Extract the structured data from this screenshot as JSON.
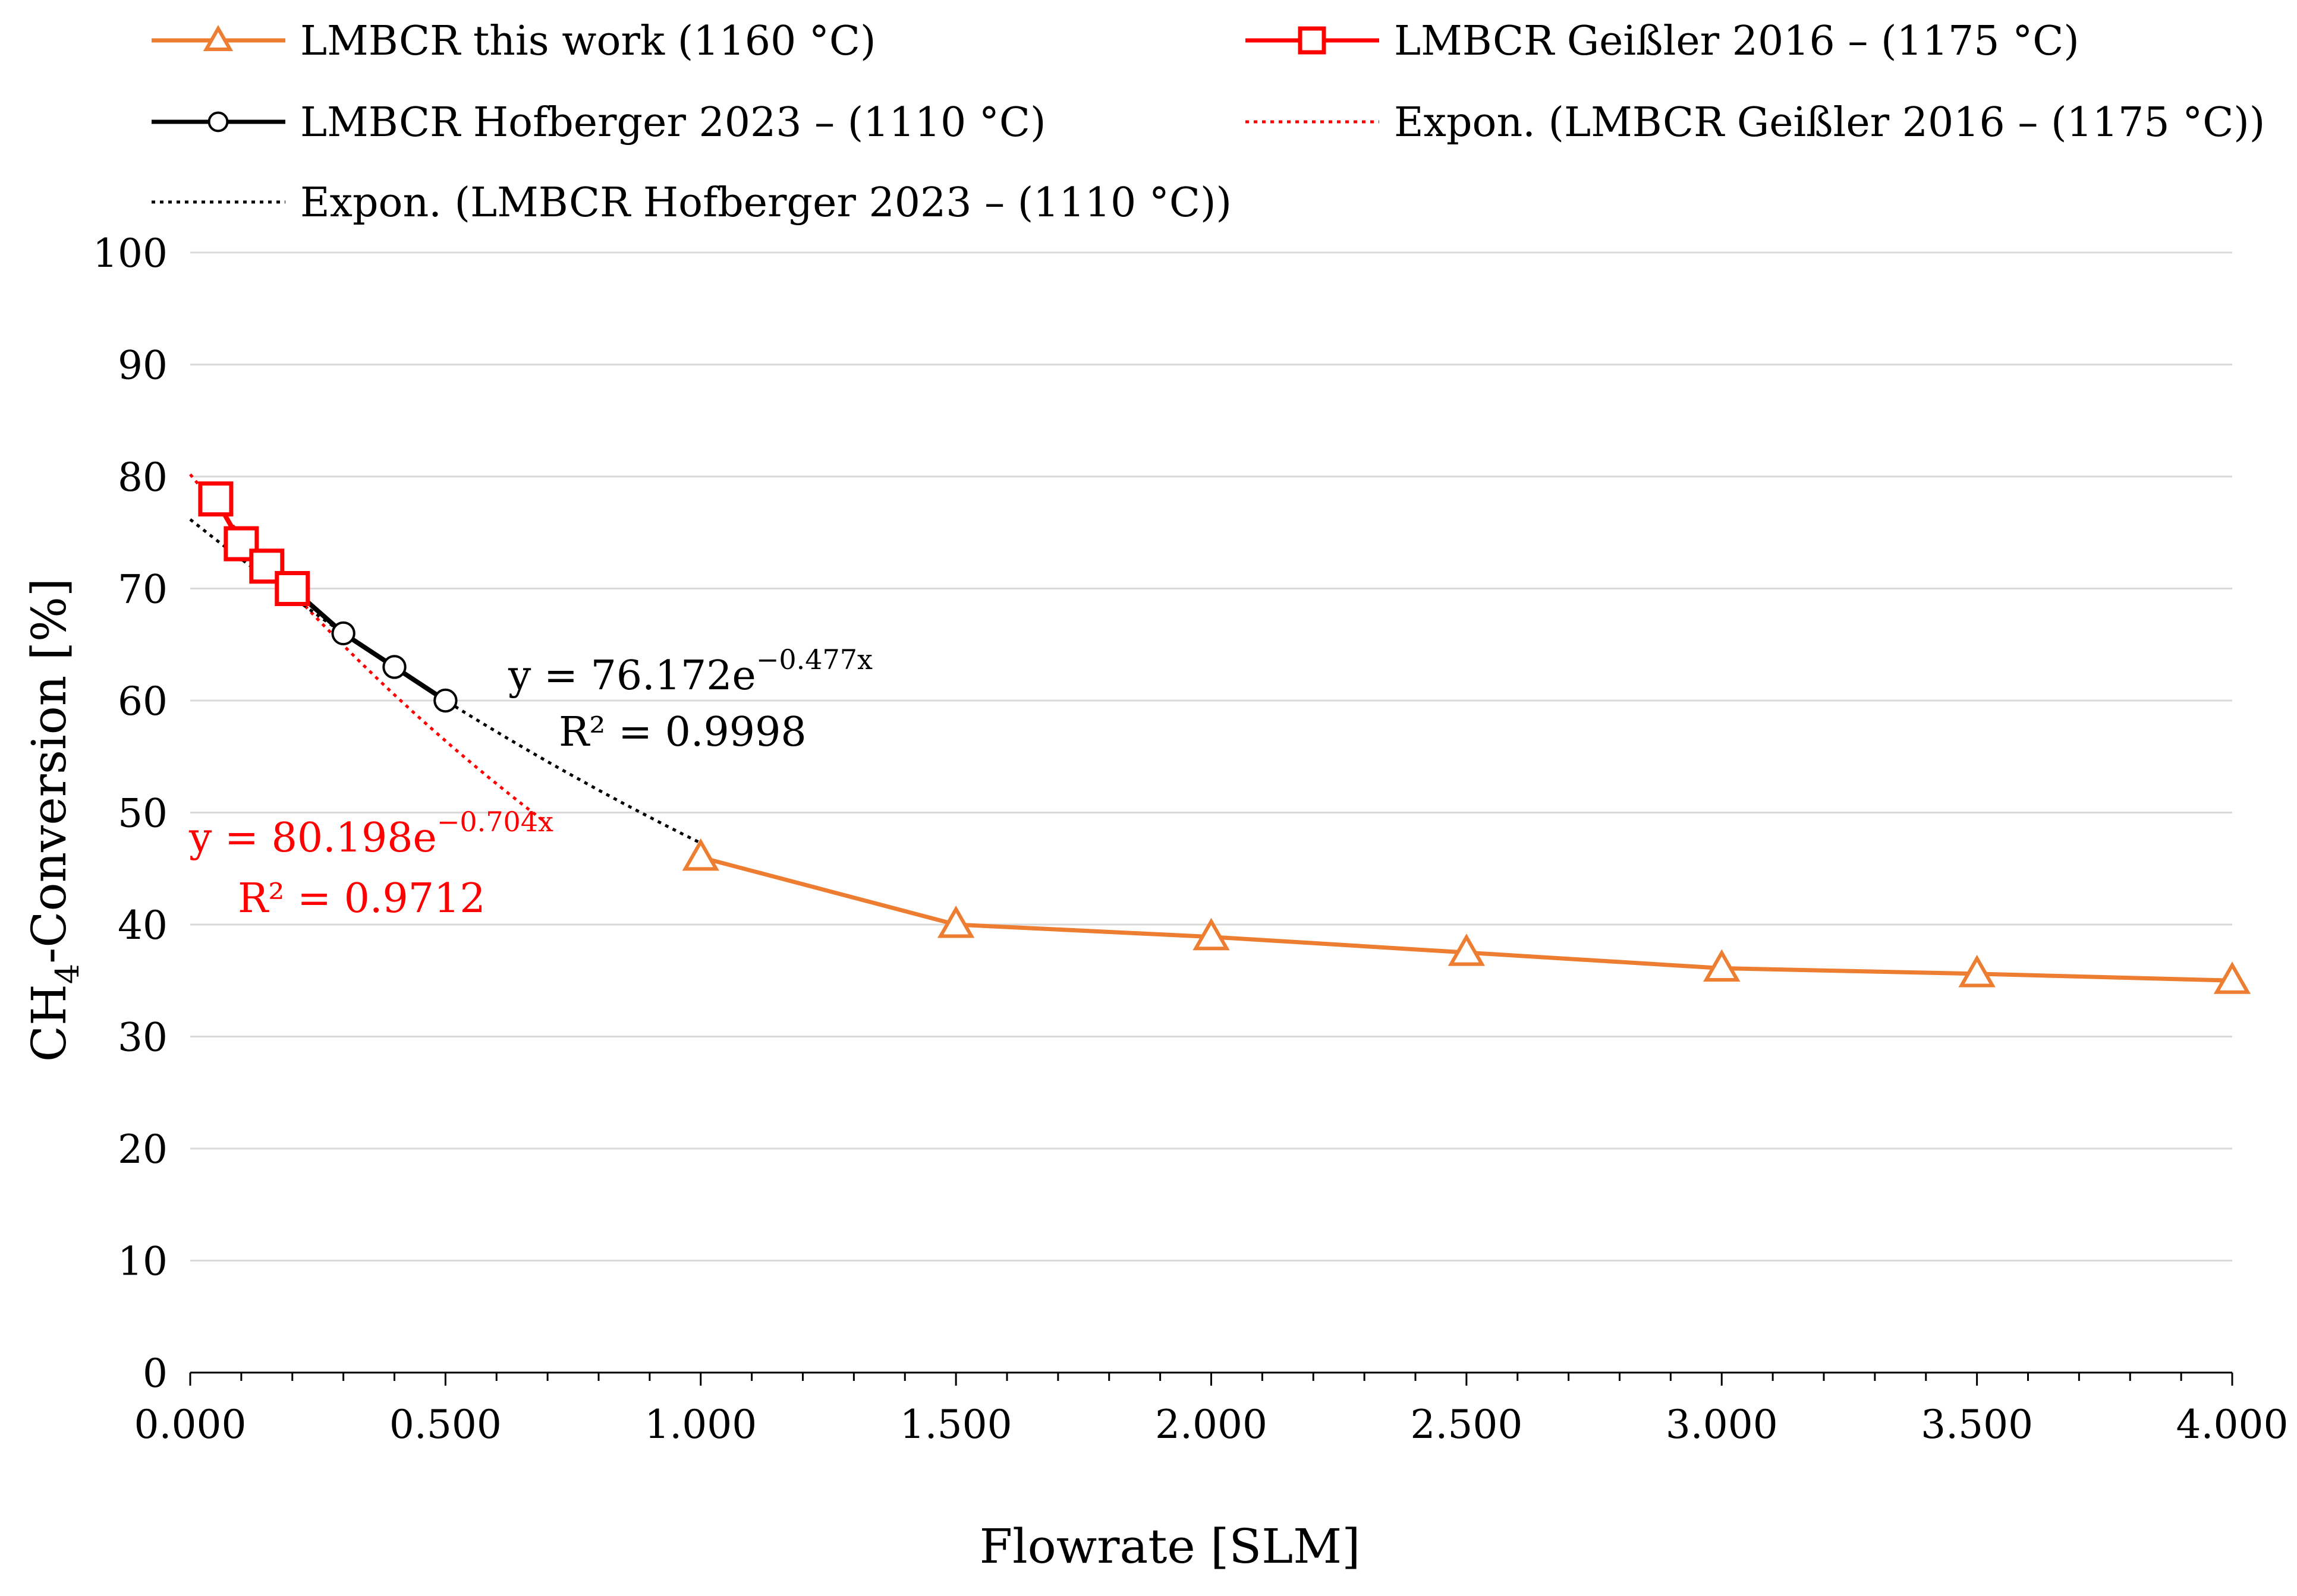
{
  "chart_data": {
    "type": "line",
    "title": "",
    "xlabel": "Flowrate [SLM]",
    "ylabel": {
      "main": "CH",
      "sub": "4",
      "rest": "-Conversion [%]"
    },
    "xlim": [
      0,
      4
    ],
    "ylim": [
      0,
      100
    ],
    "y_ticks": [
      0,
      10,
      20,
      30,
      40,
      50,
      60,
      70,
      80,
      90,
      100
    ],
    "x_ticks": [
      0,
      0.5,
      1,
      1.5,
      2,
      2.5,
      3,
      3.5,
      4
    ],
    "x_tick_labels": [
      "0.000",
      "0.500",
      "1.000",
      "1.500",
      "2.000",
      "2.500",
      "3.000",
      "3.500",
      "4.000"
    ],
    "x_minor_step": 0.1,
    "grid": "horizontal",
    "legend_position": "top",
    "series": [
      {
        "name": "LMBCR this work (1160 °C)",
        "color": "#ed7d31",
        "marker": "triangle",
        "x": [
          1.0,
          1.5,
          2.0,
          2.5,
          3.0,
          3.5,
          4.0
        ],
        "y": [
          46,
          40,
          38.9,
          37.5,
          36.1,
          35.6,
          35.0
        ]
      },
      {
        "name": "LMBCR Geißler 2016 – (1175 °C)",
        "color": "#ff0000",
        "marker": "square",
        "x": [
          0.05,
          0.1,
          0.15,
          0.2
        ],
        "y": [
          78,
          74,
          72,
          70
        ]
      },
      {
        "name": "LMBCR Hofberger 2023 – (1110 °C)",
        "color": "#000000",
        "marker": "circle",
        "x": [
          0.1,
          0.2,
          0.3,
          0.4,
          0.5
        ],
        "y": [
          73.5,
          70,
          66,
          63,
          60
        ]
      }
    ],
    "trendlines": [
      {
        "name": "Expon. (LMBCR Geißler 2016 – (1175 °C))",
        "color": "#ff0000",
        "a": 80.198,
        "b": -0.704,
        "x_range": [
          0,
          0.7
        ],
        "equation_prefix": "y = 80.198e",
        "equation_exp": "−0.704x",
        "r2": "R² = 0.9712"
      },
      {
        "name": "Expon. (LMBCR Hofberger 2023 – (1110 °C))",
        "color": "#000000",
        "a": 76.172,
        "b": -0.477,
        "x_range": [
          0,
          1.0
        ],
        "equation_prefix": "y = 76.172e",
        "equation_exp": "−0.477x",
        "r2": "R² = 0.9998"
      }
    ],
    "legend": [
      "LMBCR this work (1160 °C)",
      "LMBCR Geißler 2016 – (1175 °C)",
      "LMBCR Hofberger 2023 – (1110 °C)",
      "Expon. (LMBCR Geißler 2016 – (1175 °C))",
      "Expon. (LMBCR Hofberger 2023 – (1110 °C))"
    ]
  }
}
